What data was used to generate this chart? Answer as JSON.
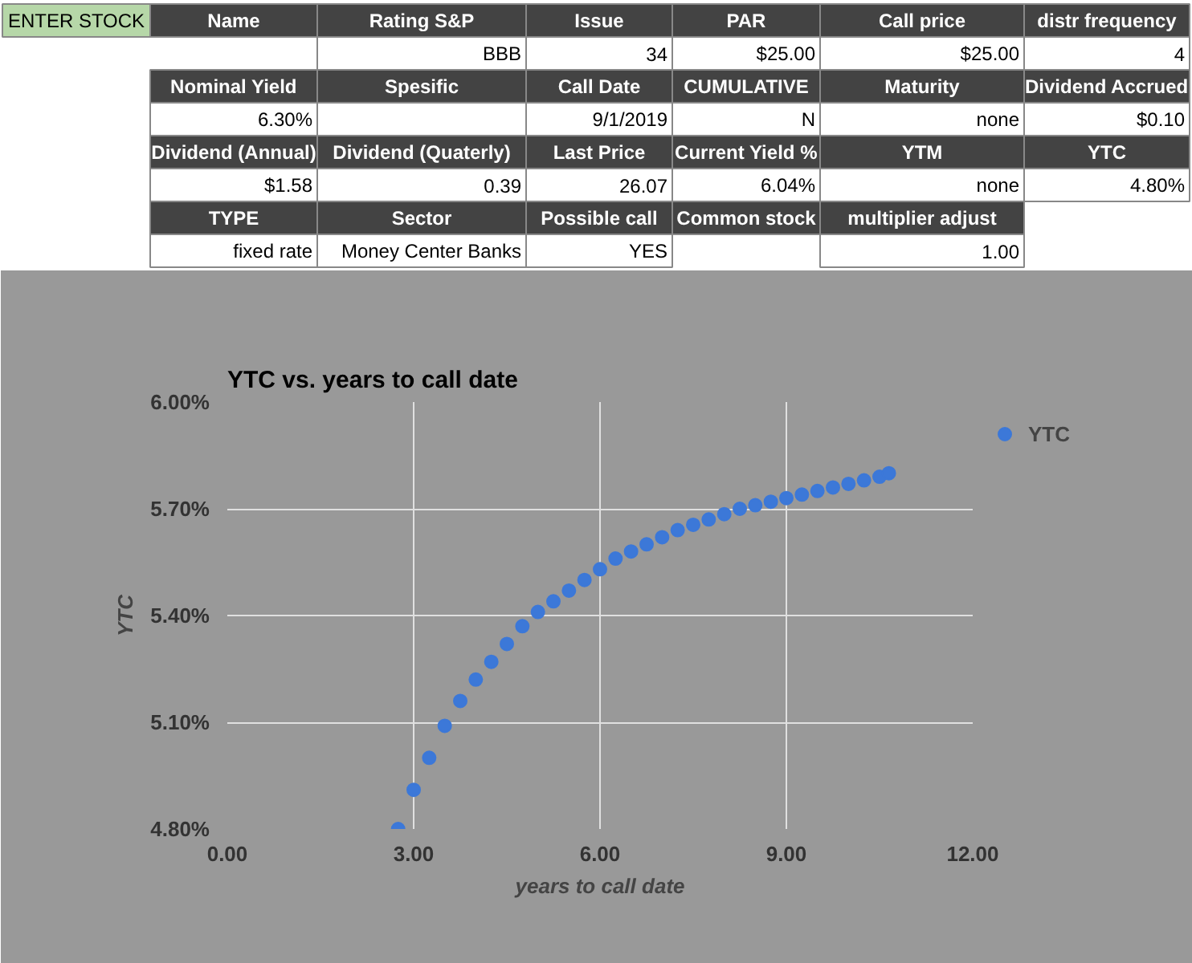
{
  "chart_data": [
    {
      "type": "other",
      "annotations": [
        "ENTER STOCK",
        "Name",
        "Rating S&P",
        "Issue",
        "PAR",
        "Call price",
        "distr frequency",
        null,
        null,
        "BBB",
        "34",
        "$25.00",
        "$25.00",
        "4",
        null,
        "Nominal Yield",
        "Spesific",
        "Call Date",
        "CUMULATIVE",
        "Maturity",
        "Dividend Accrued",
        null,
        "6.30%",
        null,
        "9/1/2019",
        "N",
        "none",
        "$0.10",
        null,
        "Dividend (Annual)",
        "Dividend (Quaterly)",
        "Last Price",
        "Current Yield %",
        "YTM",
        "YTC",
        null,
        "$1.58",
        "0.39",
        "26.07",
        "6.04%",
        "none",
        "4.80%",
        null,
        "TYPE",
        "Sector",
        "Possible call",
        "Common stock",
        "multiplier adjust",
        null,
        null,
        "fixed rate",
        "Money Center Banks",
        "YES",
        null,
        "1.00",
        null
      ]
    },
    {
      "type": "scatter",
      "title": "YTC vs. years to call date",
      "xlabel": "years to call date",
      "ylabel": "YTC",
      "xlim": [
        0,
        12
      ],
      "ylim": [
        4.8,
        6.0
      ],
      "xticks": [
        {
          "value": 0,
          "label": "0.00"
        },
        {
          "value": 3,
          "label": "3.00"
        },
        {
          "value": 6,
          "label": "6.00"
        },
        {
          "value": 9,
          "label": "9.00"
        },
        {
          "value": 12,
          "label": "12.00"
        }
      ],
      "yticks": [
        {
          "value": 4.8,
          "label": "4.80%"
        },
        {
          "value": 5.1,
          "label": "5.10%"
        },
        {
          "value": 5.4,
          "label": "5.40%"
        },
        {
          "value": 5.7,
          "label": "5.70%"
        },
        {
          "value": 6.0,
          "label": "6.00%"
        }
      ],
      "grid": true,
      "legend": "top right",
      "marker": "circle",
      "series": [
        {
          "name": "YTC",
          "color": "#3c78d8",
          "x": [
            2.75,
            3.0,
            3.25,
            3.5,
            3.75,
            4.0,
            4.25,
            4.5,
            4.75,
            5.0,
            5.25,
            5.5,
            5.75,
            6.0,
            6.25,
            6.5,
            6.75,
            7.0,
            7.25,
            7.5,
            7.75,
            8.0,
            8.25,
            8.5,
            8.75,
            9.0,
            9.25,
            9.5,
            9.75,
            10.0,
            10.25,
            10.5,
            10.65
          ],
          "values": [
            4.8,
            4.91,
            5.0,
            5.09,
            5.16,
            5.22,
            5.27,
            5.32,
            5.37,
            5.41,
            5.44,
            5.47,
            5.5,
            5.53,
            5.56,
            5.58,
            5.6,
            5.62,
            5.64,
            5.655,
            5.67,
            5.685,
            5.7,
            5.71,
            5.72,
            5.73,
            5.74,
            5.75,
            5.76,
            5.77,
            5.78,
            5.79,
            5.8
          ]
        }
      ]
    }
  ]
}
